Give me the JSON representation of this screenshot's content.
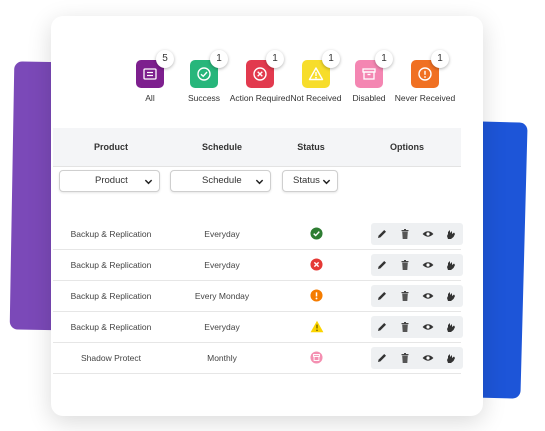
{
  "stats": [
    {
      "label": "All",
      "count": "5",
      "color": "#7d1f8e",
      "icon": "list-icon"
    },
    {
      "label": "Success",
      "count": "1",
      "color": "#27b67b",
      "icon": "check-circle-icon"
    },
    {
      "label": "Action Required",
      "count": "1",
      "color": "#e23a4e",
      "icon": "x-circle-icon"
    },
    {
      "label": "Not Received",
      "count": "1",
      "color": "#f7dd2b",
      "icon": "warning-icon"
    },
    {
      "label": "Disabled",
      "count": "1",
      "color": "#f486b2",
      "icon": "archive-icon"
    },
    {
      "label": "Never Received",
      "count": "1",
      "color": "#f07022",
      "icon": "exclamation-circle-icon"
    }
  ],
  "table": {
    "headers": {
      "product": "Product",
      "schedule": "Schedule",
      "status": "Status",
      "options": "Options"
    },
    "filters": {
      "product": "Product",
      "schedule": "Schedule",
      "status": "Status"
    },
    "rows": [
      {
        "product": "Backup & Replication",
        "schedule": "Everyday",
        "status": "success"
      },
      {
        "product": "Backup & Replication",
        "schedule": "Everyday",
        "status": "action-required"
      },
      {
        "product": "Backup & Replication",
        "schedule": "Every Monday",
        "status": "never-received"
      },
      {
        "product": "Backup & Replication",
        "schedule": "Everyday",
        "status": "not-received"
      },
      {
        "product": "Shadow Protect",
        "schedule": "Monthly",
        "status": "disabled"
      }
    ]
  },
  "colors": {
    "success": "#2e7d32",
    "action-required": "#e53935",
    "never-received": "#f57c00",
    "not-received": "#fbd400",
    "disabled": "#f48fb1"
  }
}
